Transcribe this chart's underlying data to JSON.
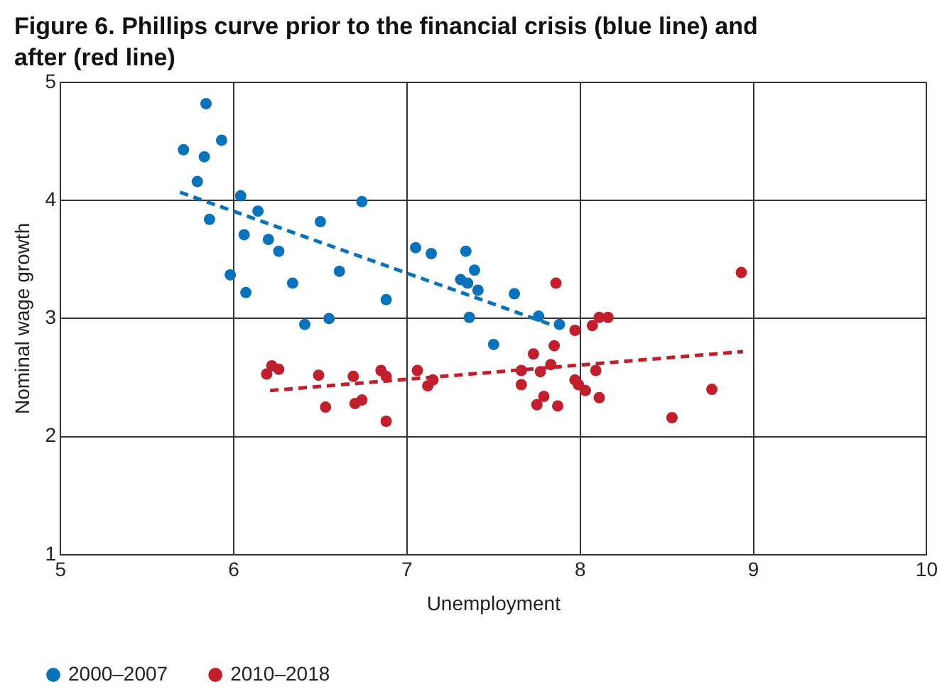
{
  "chart_data": {
    "type": "scatter",
    "title": "Figure 6. Phillips curve prior to the financial crisis (blue line) and after (red line)",
    "xlabel": "Unemployment",
    "ylabel": "Nominal wage growth",
    "xlim": [
      5,
      10
    ],
    "xticks": [
      5,
      6,
      7,
      8,
      9,
      10
    ],
    "ylim": [
      1,
      5
    ],
    "yticks": [
      1,
      2,
      3,
      4,
      5
    ],
    "grid": true,
    "legend": "bottom left",
    "marker": "circle",
    "series": [
      {
        "name": "2000–2007",
        "color": "#0a72ba",
        "x": [
          5.71,
          5.84,
          5.83,
          5.93,
          5.79,
          5.86,
          6.04,
          6.14,
          6.06,
          6.2,
          6.26,
          5.98,
          6.07,
          6.34,
          6.5,
          6.74,
          6.61,
          6.41,
          6.55,
          6.88,
          7.05,
          7.14,
          7.34,
          7.39,
          7.31,
          7.35,
          7.41,
          7.36,
          7.5,
          7.62,
          7.76,
          7.88
        ],
        "values": [
          4.43,
          4.82,
          4.37,
          4.51,
          4.16,
          3.84,
          4.04,
          3.91,
          3.71,
          3.67,
          3.57,
          3.37,
          3.22,
          3.3,
          3.82,
          3.99,
          3.4,
          2.95,
          3,
          3.16,
          3.6,
          3.55,
          3.57,
          3.41,
          3.33,
          3.3,
          3.24,
          3.01,
          2.78,
          3.21,
          3.02,
          2.95
        ]
      },
      {
        "name": "2010–2018",
        "color": "#c0202e",
        "x": [
          6.19,
          6.22,
          6.26,
          6.49,
          6.53,
          6.69,
          6.7,
          6.74,
          6.85,
          6.88,
          6.88,
          7.06,
          7.12,
          7.15,
          7.66,
          7.66,
          7.73,
          7.75,
          7.79,
          7.77,
          7.83,
          7.85,
          7.86,
          7.87,
          7.97,
          7.97,
          7.99,
          8.03,
          8.07,
          8.11,
          8.16,
          8.09,
          8.11,
          8.53,
          8.76,
          8.93
        ],
        "values": [
          2.53,
          2.6,
          2.57,
          2.52,
          2.25,
          2.51,
          2.28,
          2.31,
          2.56,
          2.51,
          2.13,
          2.56,
          2.43,
          2.48,
          2.56,
          2.44,
          2.7,
          2.27,
          2.34,
          2.55,
          2.61,
          2.77,
          3.3,
          2.26,
          2.9,
          2.48,
          2.44,
          2.39,
          2.94,
          3.01,
          3.01,
          2.56,
          2.33,
          2.16,
          2.4,
          3.39
        ]
      },
      {
        "type": "line",
        "color": "#0a72ba",
        "line_style": "dashed",
        "marker": "none",
        "x": [
          5.69,
          7.83
        ],
        "values": [
          4.07,
          2.95
        ]
      },
      {
        "type": "line",
        "color": "#c0202e",
        "line_style": "dashed",
        "marker": "none",
        "x": [
          6.21,
          8.94
        ],
        "values": [
          2.39,
          2.72
        ]
      }
    ]
  }
}
